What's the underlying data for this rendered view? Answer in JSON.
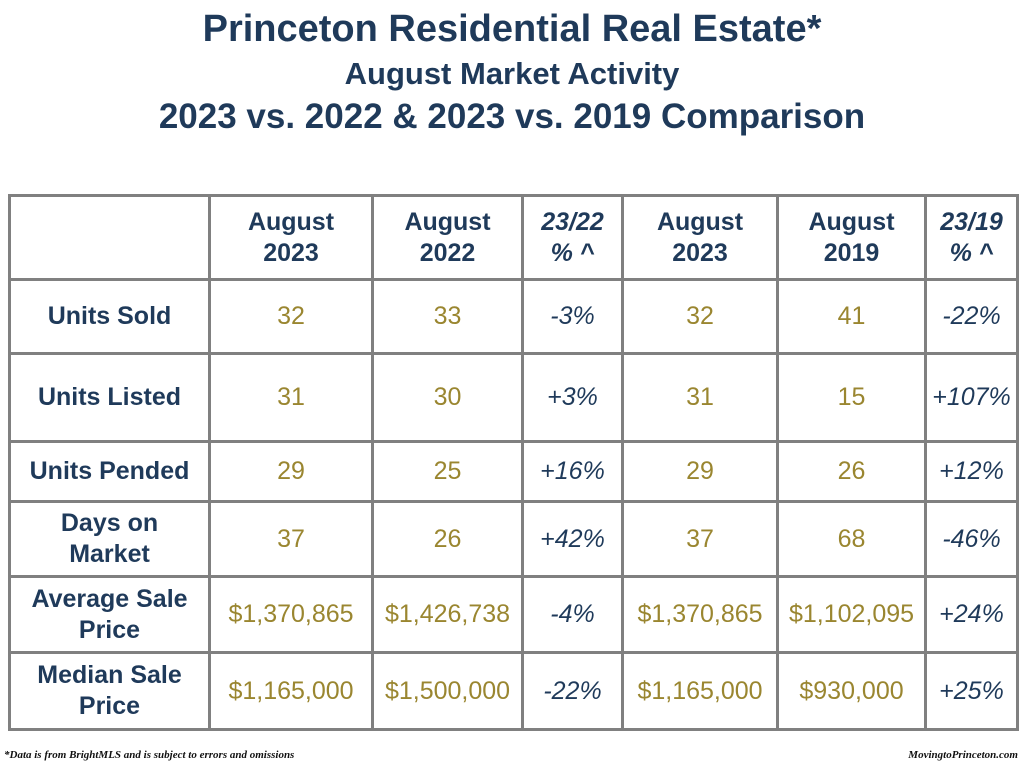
{
  "header": {
    "title": "Princeton Residential Real Estate*",
    "subtitle": "August Market Activity",
    "comparison": "2023 vs. 2022 & 2023 vs. 2019 Comparison"
  },
  "table": {
    "columns": [
      [
        "August",
        "2023"
      ],
      [
        "August",
        "2022"
      ],
      [
        "23/22",
        "% ^"
      ],
      [
        "August",
        "2023"
      ],
      [
        "August",
        "2019"
      ],
      [
        "23/19",
        "% ^"
      ]
    ],
    "rows": [
      {
        "label": "Units Sold",
        "cells": [
          "32",
          "33",
          "-3%",
          "32",
          "41",
          "-22%"
        ]
      },
      {
        "label": "Units Listed",
        "cells": [
          "31",
          "30",
          "+3%",
          "31",
          "15",
          "+107%"
        ]
      },
      {
        "label": "Units Pended",
        "cells": [
          "29",
          "25",
          "+16%",
          "29",
          "26",
          "+12%"
        ]
      },
      {
        "label": "Days on Market",
        "cells": [
          "37",
          "26",
          "+42%",
          "37",
          "68",
          "-46%"
        ]
      },
      {
        "label": "Average Sale Price",
        "cells": [
          "$1,370,865",
          "$1,426,738",
          "-4%",
          "$1,370,865",
          "$1,102,095",
          "+24%"
        ]
      },
      {
        "label": "Median Sale Price",
        "cells": [
          "$1,165,000",
          "$1,500,000",
          "-22%",
          "$1,165,000",
          "$930,000",
          "+25%"
        ]
      }
    ]
  },
  "footer": {
    "note": "*Data is from BrightMLS and is subject to errors and omissions",
    "source": "MovingtoPrinceton.com"
  }
}
